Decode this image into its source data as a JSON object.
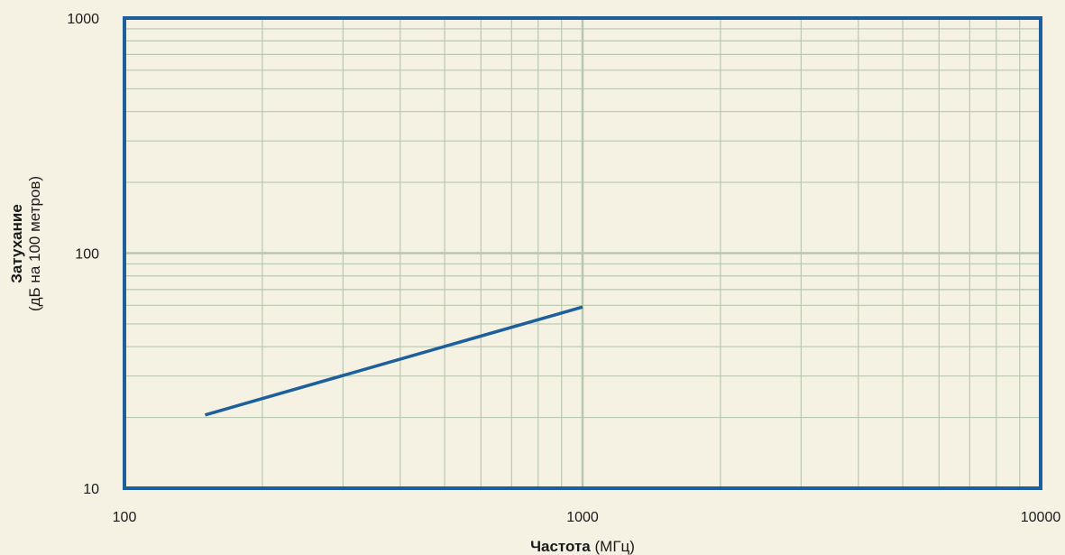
{
  "chart_data": {
    "type": "line",
    "x_scale": "log",
    "y_scale": "log",
    "xlim": [
      100,
      10000
    ],
    "ylim": [
      10,
      1000
    ],
    "x_ticks": [
      "100",
      "1000",
      "10000"
    ],
    "y_ticks": [
      "10",
      "100",
      "1000"
    ],
    "xlabel_bold": "Частота",
    "xlabel_unit": "(МГц)",
    "ylabel_bold": "Затухание",
    "ylabel_unit": "(дБ на 100 метров)",
    "grid": true,
    "series": [
      {
        "x": [
          150,
          1000
        ],
        "y": [
          20.5,
          59
        ]
      }
    ],
    "colors": {
      "background": "#f5f2e4",
      "plot_border": "#1d5f9a",
      "grid": "#b8c8b0",
      "line": "#1d5f9a"
    }
  }
}
